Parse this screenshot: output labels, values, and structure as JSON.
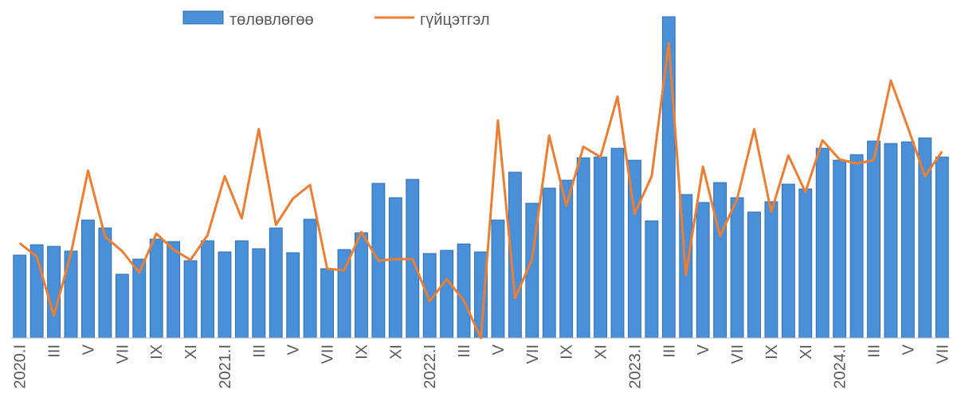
{
  "chart_data": {
    "type": "bar-line",
    "categories": [
      "2020.I",
      null,
      "III",
      null,
      "V",
      null,
      "VII",
      null,
      "IX",
      null,
      "XI",
      null,
      "2021.I",
      null,
      "III",
      null,
      "V",
      null,
      "VII",
      null,
      "IX",
      null,
      "XI",
      null,
      "2022.I",
      null,
      "III",
      null,
      "V",
      null,
      "VII",
      null,
      "IX",
      null,
      "XI",
      null,
      "2023.I",
      null,
      "III",
      null,
      "V",
      null,
      "VII",
      null,
      "IX",
      null,
      "XI",
      null,
      "2024.I",
      null,
      "III",
      null,
      "V",
      null,
      "VII"
    ],
    "series": [
      {
        "name": "төлөвлөгөө",
        "type": "bar",
        "color": "#4a90d9",
        "values": [
          104,
          117,
          115,
          109,
          148,
          138,
          80,
          99,
          124,
          121,
          97,
          122,
          108,
          122,
          112,
          138,
          107,
          149,
          87,
          111,
          132,
          194,
          176,
          199,
          106,
          110,
          118,
          108,
          148,
          208,
          169,
          188,
          198,
          226,
          227,
          238,
          223,
          147,
          403,
          180,
          170,
          195,
          176,
          158,
          171,
          193,
          187,
          238,
          223,
          230,
          247,
          244,
          246,
          251,
          227
        ]
      },
      {
        "name": "гүйцэтгэл",
        "type": "line",
        "color": "#ed7d31",
        "values": [
          119,
          102,
          28,
          106,
          210,
          127,
          109,
          82,
          131,
          111,
          98,
          129,
          203,
          150,
          262,
          142,
          175,
          192,
          87,
          85,
          133,
          97,
          99,
          99,
          46,
          74,
          47,
          0,
          273,
          50,
          99,
          254,
          166,
          240,
          227,
          303,
          156,
          203,
          370,
          79,
          215,
          128,
          174,
          262,
          158,
          229,
          183,
          248,
          224,
          219,
          223,
          323,
          264,
          203,
          234
        ]
      }
    ],
    "ylim": [
      0,
      410
    ],
    "legend": "top"
  }
}
